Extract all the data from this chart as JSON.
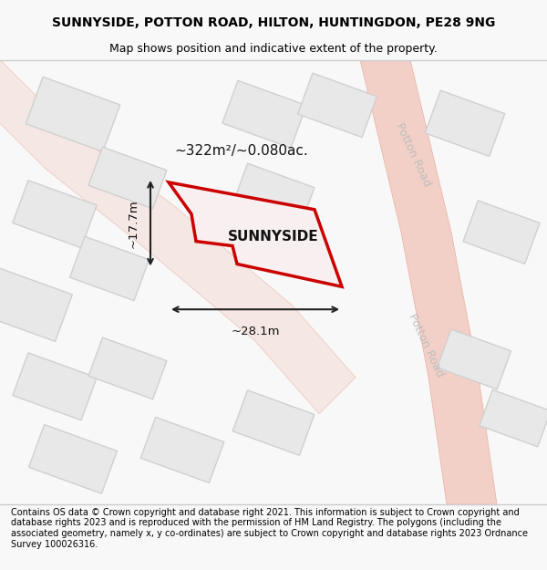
{
  "title_line1": "SUNNYSIDE, POTTON ROAD, HILTON, HUNTINGDON, PE28 9NG",
  "title_line2": "Map shows position and indicative extent of the property.",
  "footer_text": "Contains OS data © Crown copyright and database right 2021. This information is subject to Crown copyright and database rights 2023 and is reproduced with the permission of HM Land Registry. The polygons (including the associated geometry, namely x, y co-ordinates) are subject to Crown copyright and database rights 2023 Ordnance Survey 100026316.",
  "bg_color": "#f5f5f0",
  "map_bg": "#ffffff",
  "plot_outline_color": "#cc0000",
  "road_label_color": "#aaaaaa",
  "building_fill": "#e0e0e0",
  "building_edge": "#cccccc",
  "road_outline_color": "#f0c0b0",
  "area_label": "~322m²/~0.080ac.",
  "name_label": "SUNNYSIDE",
  "width_label": "~28.1m",
  "height_label": "~17.7m",
  "title_fontsize": 10,
  "footer_fontsize": 7.5
}
